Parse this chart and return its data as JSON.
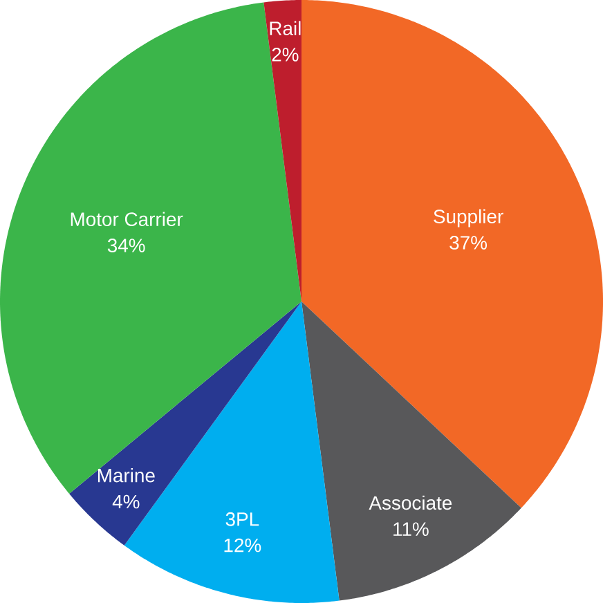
{
  "chart_data": {
    "type": "pie",
    "categories": [
      "Supplier",
      "Associate",
      "3PL",
      "Marine",
      "Motor Carrier",
      "Rail"
    ],
    "values": [
      37,
      11,
      12,
      4,
      34,
      2
    ],
    "value_labels": [
      "37%",
      "11%",
      "12%",
      "4%",
      "34%",
      "2%"
    ],
    "colors": [
      "#f26826",
      "#58585a",
      "#00aeef",
      "#283891",
      "#3bb54a",
      "#be1e2d"
    ]
  }
}
